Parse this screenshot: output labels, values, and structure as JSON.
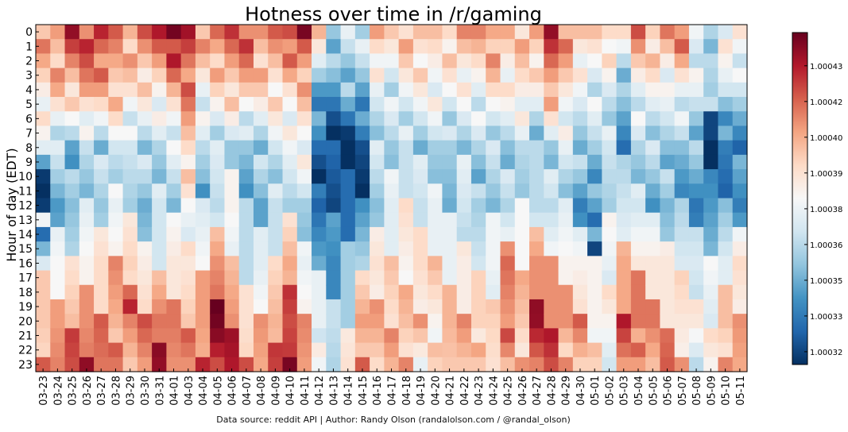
{
  "chart_data": {
    "type": "heatmap",
    "title": "Hotness over time in /r/gaming",
    "xlabel": "",
    "ylabel": "Hour of day (EDT)",
    "x_categories": [
      "03-23",
      "03-24",
      "03-25",
      "03-26",
      "03-27",
      "03-28",
      "03-29",
      "03-30",
      "03-31",
      "04-01",
      "04-03",
      "04-04",
      "04-05",
      "04-06",
      "04-07",
      "04-08",
      "04-09",
      "04-10",
      "04-11",
      "04-12",
      "04-13",
      "04-14",
      "04-15",
      "04-16",
      "04-17",
      "04-18",
      "04-19",
      "04-20",
      "04-21",
      "04-22",
      "04-23",
      "04-24",
      "04-25",
      "04-26",
      "04-27",
      "04-28",
      "04-29",
      "04-30",
      "05-01",
      "05-02",
      "05-03",
      "05-04",
      "05-05",
      "05-06",
      "05-07",
      "05-08",
      "05-09",
      "05-10",
      "05-11"
    ],
    "y_categories": [
      "0",
      "1",
      "2",
      "3",
      "4",
      "5",
      "6",
      "7",
      "8",
      "9",
      "10",
      "11",
      "12",
      "13",
      "14",
      "15",
      "16",
      "17",
      "18",
      "19",
      "20",
      "21",
      "22",
      "23"
    ],
    "colorbar_range": [
      1.000315,
      1.000445
    ],
    "colorbar_ticks": [
      "1.00032",
      "1.00033",
      "1.00035",
      "1.00036",
      "1.00038",
      "1.00039",
      "1.00040",
      "1.00042",
      "1.00043"
    ],
    "colorbar_tick_values": [
      1.00032,
      1.000334,
      1.000348,
      1.000362,
      1.000376,
      1.00039,
      1.000404,
      1.000418,
      1.000432
    ],
    "colormap": [
      "#053061",
      "#2166ac",
      "#4393c3",
      "#92c5de",
      "#d1e5f0",
      "#f7f7f7",
      "#fddbc7",
      "#f4a582",
      "#d6604d",
      "#b2182b",
      "#67001f"
    ],
    "grid": false,
    "legend": "colorbar-right",
    "anchors": {
      "hours": [
        0,
        4,
        8,
        12,
        16,
        20,
        23
      ],
      "columns": [
        [
          1.00041,
          1.00039,
          1.00037,
          1.00028,
          1.00038,
          1.0004,
          1.00041
        ],
        [
          1.00041,
          1.0004,
          1.00036,
          1.00035,
          1.00038,
          1.0004,
          1.00042
        ],
        [
          1.00043,
          1.0004,
          1.00035,
          1.00035,
          1.00038,
          1.00041,
          1.00042
        ],
        [
          1.00042,
          1.00041,
          1.00036,
          1.00036,
          1.00039,
          1.00041,
          1.00043
        ],
        [
          1.00043,
          1.0004,
          1.00036,
          1.00036,
          1.00039,
          1.00041,
          1.00042
        ],
        [
          1.00041,
          1.0004,
          1.00037,
          1.00037,
          1.0004,
          1.00041,
          1.00041
        ],
        [
          1.00041,
          1.00039,
          1.00036,
          1.00037,
          1.0004,
          1.00041,
          1.00041
        ],
        [
          1.00042,
          1.00039,
          1.00036,
          1.00035,
          1.00038,
          1.00041,
          1.00041
        ],
        [
          1.00042,
          1.00039,
          1.00036,
          1.00036,
          1.00038,
          1.00042,
          1.00043
        ],
        [
          1.00044,
          1.0004,
          1.00037,
          1.00036,
          1.00039,
          1.00041,
          1.00042
        ],
        [
          1.00043,
          1.00041,
          1.0004,
          1.00038,
          1.00038,
          1.00041,
          1.00041
        ],
        [
          1.00041,
          1.00038,
          1.00036,
          1.00036,
          1.00039,
          1.00041,
          1.00042
        ],
        [
          1.00042,
          1.00039,
          1.00036,
          1.00037,
          1.00041,
          1.00044,
          1.00043
        ],
        [
          1.00042,
          1.0004,
          1.00036,
          1.00038,
          1.00039,
          1.00042,
          1.00043
        ],
        [
          1.00042,
          1.0004,
          1.00035,
          1.00035,
          1.00037,
          1.00039,
          1.00041
        ],
        [
          1.00041,
          1.00039,
          1.00036,
          1.00035,
          1.00037,
          1.0004,
          1.00041
        ],
        [
          1.00041,
          1.00039,
          1.00037,
          1.00036,
          1.00038,
          1.00041,
          1.00042
        ],
        [
          1.00043,
          1.00039,
          1.00037,
          1.00037,
          1.00041,
          1.00042,
          1.00044
        ],
        [
          1.00043,
          1.0004,
          1.00038,
          1.00036,
          1.00037,
          1.0004,
          1.00041
        ],
        [
          1.00039,
          1.00035,
          1.00033,
          1.00032,
          1.00036,
          1.00038,
          1.00037
        ],
        [
          1.00036,
          1.00034,
          1.00032,
          1.00033,
          1.00034,
          1.00036,
          1.00037
        ],
        [
          1.00037,
          1.00035,
          1.00031,
          1.00033,
          1.00035,
          1.00037,
          1.00039
        ],
        [
          1.00037,
          1.00035,
          1.00032,
          1.00033,
          1.00037,
          1.00041,
          1.00041
        ],
        [
          1.00041,
          1.00037,
          1.00036,
          1.00036,
          1.00039,
          1.0004,
          1.0004
        ],
        [
          1.00039,
          1.00037,
          1.00036,
          1.00037,
          1.00039,
          1.0004,
          1.0004
        ],
        [
          1.0004,
          1.00038,
          1.00036,
          1.00038,
          1.00039,
          1.0004,
          1.0004
        ],
        [
          1.0004,
          1.00038,
          1.00036,
          1.00037,
          1.00039,
          1.0004,
          1.00038
        ],
        [
          1.00039,
          1.00038,
          1.00036,
          1.00037,
          1.00039,
          1.00039,
          1.00039
        ],
        [
          1.0004,
          1.00038,
          1.00035,
          1.00036,
          1.00038,
          1.0004,
          1.00041
        ],
        [
          1.00041,
          1.00038,
          1.00036,
          1.00037,
          1.00038,
          1.0004,
          1.0004
        ],
        [
          1.0004,
          1.00038,
          1.00036,
          1.00035,
          1.00038,
          1.0004,
          1.00039
        ],
        [
          1.00041,
          1.00039,
          1.00036,
          1.00036,
          1.00038,
          1.00039,
          1.0004
        ],
        [
          1.0004,
          1.00038,
          1.00036,
          1.00036,
          1.00041,
          1.00042,
          1.0004
        ],
        [
          1.0004,
          1.00039,
          1.00036,
          1.00037,
          1.00039,
          1.0004,
          1.0004
        ],
        [
          1.00041,
          1.00038,
          1.00035,
          1.00037,
          1.00041,
          1.00043,
          1.00042
        ],
        [
          1.00043,
          1.00041,
          1.00036,
          1.00036,
          1.0004,
          1.00042,
          1.00042
        ],
        [
          1.00041,
          1.00039,
          1.00037,
          1.00036,
          1.00039,
          1.00041,
          1.0004
        ],
        [
          1.0004,
          1.00037,
          1.00036,
          1.00034,
          1.00038,
          1.00041,
          1.0004
        ],
        [
          1.00039,
          1.00037,
          1.00036,
          1.00034,
          1.00037,
          1.00039,
          1.00039
        ],
        [
          1.0004,
          1.00037,
          1.00036,
          1.00037,
          1.00038,
          1.00038,
          1.00038
        ],
        [
          1.00039,
          1.00035,
          1.00034,
          1.00037,
          1.0004,
          1.00042,
          1.00041
        ],
        [
          1.00041,
          1.00038,
          1.00036,
          1.00036,
          1.0004,
          1.00042,
          1.0004
        ],
        [
          1.0004,
          1.00038,
          1.00036,
          1.00035,
          1.00039,
          1.00041,
          1.00041
        ],
        [
          1.00041,
          1.00037,
          1.00036,
          1.00035,
          1.00038,
          1.0004,
          1.00042
        ],
        [
          1.00042,
          1.00038,
          1.00035,
          1.00035,
          1.00038,
          1.00039,
          1.0004
        ],
        [
          1.00038,
          1.00037,
          1.00035,
          1.00034,
          1.00037,
          1.00038,
          1.00037
        ],
        [
          1.00036,
          1.00037,
          1.00031,
          1.00034,
          1.00037,
          1.00038,
          1.00038
        ],
        [
          1.00038,
          1.00037,
          1.00033,
          1.00034,
          1.00038,
          1.0004,
          1.0004
        ],
        [
          1.00039,
          1.00036,
          1.00034,
          1.00034,
          1.00039,
          1.0004,
          1.00041
        ]
      ]
    },
    "overrides": [
      {
        "x": "03-23",
        "hour": 12,
        "value": 1.000318
      },
      {
        "x": "03-23",
        "hour": 13,
        "value": 1.000378
      },
      {
        "x": "05-01",
        "hour": 15,
        "value": 1.00032
      },
      {
        "x": "05-01",
        "hour": 13,
        "value": 1.00033
      },
      {
        "x": "05-09",
        "hour": 8,
        "value": 1.000315
      },
      {
        "x": "05-09",
        "hour": 6,
        "value": 1.00032
      },
      {
        "x": "05-09",
        "hour": 7,
        "value": 1.00032
      },
      {
        "x": "05-09",
        "hour": 0,
        "value": 1.00036
      },
      {
        "x": "05-09",
        "hour": 1,
        "value": 1.00035
      },
      {
        "x": "04-10",
        "hour": 23,
        "value": 1.000442
      },
      {
        "x": "04-05",
        "hour": 20,
        "value": 1.000443
      },
      {
        "x": "04-01",
        "hour": 0,
        "value": 1.000443
      },
      {
        "x": "04-11",
        "hour": 0,
        "value": 1.000442
      },
      {
        "x": "04-27",
        "hour": 19,
        "value": 1.000438
      },
      {
        "x": "03-26",
        "hour": 23,
        "value": 1.000438
      },
      {
        "x": "03-29",
        "hour": 19,
        "value": 1.00043
      },
      {
        "x": "04-04",
        "hour": 11,
        "value": 1.00034
      }
    ]
  },
  "footer": {
    "text": "Data source: reddit API | Author: Randy Olson (randalolson.com / @randal_olson)"
  }
}
